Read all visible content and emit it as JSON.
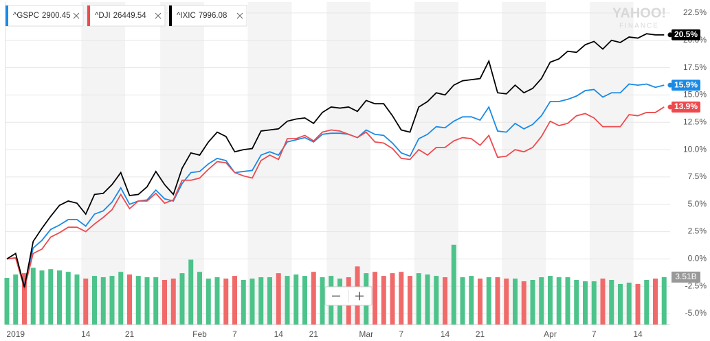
{
  "chart_data": {
    "type": "line",
    "watermark": [
      "YAHOO!",
      "FINANCE"
    ],
    "categories": [
      null,
      "2019",
      null,
      null,
      null,
      null,
      null,
      null,
      null,
      "14",
      null,
      null,
      null,
      null,
      "21",
      null,
      null,
      null,
      null,
      null,
      null,
      null,
      "Feb",
      null,
      null,
      null,
      "7",
      null,
      null,
      null,
      null,
      "14",
      null,
      null,
      null,
      "21",
      null,
      null,
      null,
      null,
      null,
      "Mar",
      null,
      null,
      null,
      "7",
      null,
      null,
      null,
      null,
      "14",
      null,
      null,
      null,
      "21",
      null,
      null,
      null,
      null,
      null,
      null,
      null,
      "Apr",
      null,
      null,
      null,
      null,
      "7",
      null,
      null,
      null,
      null,
      "14",
      null,
      null,
      null
    ],
    "ylim": [
      -6,
      23.5
    ],
    "yticks": [
      {
        "value": 22.5,
        "label": "22.5%"
      },
      {
        "value": 20,
        "label": "20.0%"
      },
      {
        "value": 17.5,
        "label": "17.5%"
      },
      {
        "value": 15,
        "label": "15.0%"
      },
      {
        "value": 12.5,
        "label": "12.5%"
      },
      {
        "value": 10,
        "label": "10.0%"
      },
      {
        "value": 7.5,
        "label": "7.5%"
      },
      {
        "value": 5,
        "label": "5.0%"
      },
      {
        "value": 2.5,
        "label": "2.5%"
      },
      {
        "value": 0,
        "label": "0.0%"
      },
      {
        "value": -2.5,
        "label": "-2.5%"
      },
      {
        "value": -5,
        "label": "-5.0%"
      }
    ],
    "grid": true,
    "series": [
      {
        "name": "^GSPC",
        "quote": 2900.45,
        "color": "#1a8ae5",
        "last_label": "15.9%",
        "values": [
          0,
          0.1,
          -2.4,
          1.0,
          1.7,
          2.7,
          3.1,
          3.6,
          3.6,
          3.0,
          4.1,
          4.4,
          5.2,
          6.5,
          5.0,
          5.3,
          5.4,
          6.3,
          5.5,
          5.3,
          6.9,
          7.9,
          8.0,
          8.7,
          9.2,
          9.0,
          7.9,
          8.0,
          8.1,
          9.5,
          9.8,
          9.5,
          10.7,
          10.9,
          11.1,
          10.7,
          11.4,
          11.5,
          11.5,
          11.4,
          11.1,
          11.8,
          11.4,
          11.3,
          10.6,
          9.7,
          9.4,
          11.0,
          11.4,
          12.1,
          12.0,
          12.6,
          13.0,
          13.0,
          12.7,
          13.9,
          11.7,
          11.6,
          12.4,
          11.9,
          12.3,
          13.1,
          14.4,
          14.4,
          14.6,
          14.9,
          15.4,
          15.5,
          14.8,
          15.2,
          15.2,
          16.0,
          15.9,
          16.0,
          15.7,
          15.9
        ]
      },
      {
        "name": "^DJI",
        "quote": 26449.54,
        "color": "#ee4a4e",
        "last_label": "13.9%",
        "values": [
          0,
          0.1,
          -2.7,
          0.5,
          0.9,
          2.0,
          2.4,
          2.9,
          2.9,
          2.5,
          3.2,
          3.8,
          4.5,
          5.9,
          4.6,
          5.3,
          5.3,
          6.0,
          5.1,
          5.4,
          7.2,
          7.2,
          7.4,
          8.2,
          8.9,
          8.8,
          7.9,
          7.6,
          7.4,
          9.0,
          9.5,
          9.1,
          11.0,
          11.0,
          11.3,
          10.8,
          11.6,
          11.8,
          11.7,
          11.4,
          11.1,
          11.6,
          10.7,
          10.6,
          10.1,
          9.2,
          9.1,
          10.0,
          9.5,
          10.2,
          10.2,
          10.8,
          11.1,
          11.0,
          10.4,
          11.3,
          9.3,
          9.4,
          10.0,
          9.8,
          10.2,
          11.2,
          12.6,
          12.2,
          12.4,
          13.1,
          13.3,
          12.9,
          12.1,
          12.1,
          12.1,
          13.2,
          13.1,
          13.4,
          13.4,
          13.9
        ]
      },
      {
        "name": "^IXIC",
        "quote": 7996.08,
        "color": "#000000",
        "last_label": "20.5%",
        "values": [
          0,
          0.5,
          -2.6,
          1.6,
          2.8,
          3.9,
          4.9,
          5.3,
          5.1,
          4.1,
          5.9,
          6.0,
          6.8,
          7.9,
          5.8,
          5.9,
          6.6,
          8.0,
          6.8,
          5.9,
          8.3,
          9.7,
          9.5,
          10.7,
          11.6,
          11.2,
          9.8,
          10.0,
          10.1,
          11.7,
          11.8,
          11.9,
          12.6,
          12.8,
          12.9,
          12.4,
          13.4,
          13.9,
          13.8,
          13.9,
          13.5,
          14.5,
          14.2,
          14.2,
          13.1,
          11.8,
          11.6,
          13.9,
          14.4,
          15.2,
          15.0,
          15.9,
          16.3,
          16.4,
          16.5,
          18.1,
          15.2,
          15.1,
          15.9,
          15.2,
          15.6,
          16.5,
          18.0,
          18.3,
          19.0,
          18.9,
          19.6,
          19.9,
          19.2,
          20.0,
          19.8,
          20.3,
          20.2,
          20.6,
          20.5,
          20.5
        ]
      }
    ],
    "volume": {
      "up_color": "#4cc38a",
      "down_color": "#f06a6a",
      "last_label": "3.51B",
      "values": [
        3.45,
        3.7,
        3.8,
        4.2,
        4.0,
        4.1,
        4.0,
        3.9,
        3.7,
        3.4,
        3.6,
        3.5,
        3.6,
        3.9,
        3.7,
        3.6,
        3.5,
        3.5,
        3.3,
        3.4,
        3.8,
        4.8,
        3.9,
        3.4,
        3.5,
        3.4,
        3.6,
        3.3,
        3.4,
        3.5,
        3.5,
        3.8,
        3.6,
        3.7,
        3.6,
        3.9,
        3.5,
        3.6,
        3.4,
        3.5,
        4.3,
        3.8,
        3.9,
        3.6,
        3.8,
        3.9,
        3.6,
        3.8,
        3.7,
        3.6,
        3.5,
        5.9,
        3.5,
        3.6,
        3.4,
        3.5,
        3.5,
        3.4,
        3.4,
        3.2,
        3.3,
        3.5,
        3.6,
        3.5,
        3.5,
        3.3,
        3.2,
        3.2,
        3.4,
        3.3,
        3.0,
        3.1,
        3.0,
        3.3,
        3.4,
        3.51
      ]
    }
  }
}
